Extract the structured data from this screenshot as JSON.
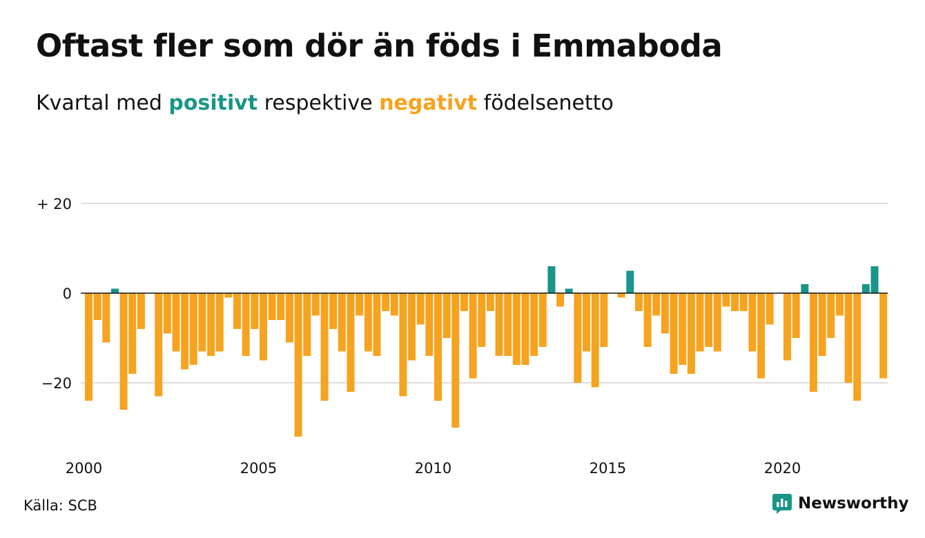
{
  "title": "Oftast fler som dör än föds i Emmaboda",
  "subtitle": {
    "before": "Kvartal med ",
    "positive_word": "positivt",
    "middle": " respektive ",
    "negative_word": "negativt",
    "after": " födelsenetto"
  },
  "colors": {
    "positive": "#1a9587",
    "negative": "#f6a31f",
    "grid": "#dddddd",
    "zero_line": "#111111"
  },
  "source": "Källa: SCB",
  "brand": {
    "name": "Newsworthy",
    "icon": "newsworthy-logo-icon"
  },
  "chart_data": {
    "type": "bar",
    "title": "Oftast fler som dör än föds i Emmaboda",
    "subtitle": "Kvartal med positivt respektive negativt födelsenetto",
    "xlabel": "",
    "ylabel": "",
    "x_tick_labels": [
      "2000",
      "2005",
      "2010",
      "2015",
      "2020"
    ],
    "y_ticks": [
      {
        "value": 20,
        "label": "+ 20"
      },
      {
        "value": 0,
        "label": "0"
      },
      {
        "value": -20,
        "label": "−20"
      }
    ],
    "ylim": [
      -34,
      22
    ],
    "grid": true,
    "start_year": 2000,
    "periods_per_year": 4,
    "values": [
      -24,
      -6,
      -11,
      1,
      -26,
      -18,
      -8,
      0,
      -23,
      -9,
      -13,
      -17,
      -16,
      -13,
      -14,
      -13,
      -1,
      -8,
      -14,
      -8,
      -15,
      -6,
      -6,
      -11,
      -32,
      -14,
      -5,
      -24,
      -8,
      -13,
      -22,
      -5,
      -13,
      -14,
      -4,
      -5,
      -23,
      -15,
      -7,
      -14,
      -24,
      -10,
      -30,
      -4,
      -19,
      -12,
      -4,
      -14,
      -14,
      -16,
      -16,
      -14,
      -12,
      6,
      -3,
      1,
      -20,
      -13,
      -21,
      -12,
      0,
      -1,
      5,
      -4,
      -12,
      -5,
      -9,
      -18,
      -16,
      -18,
      -13,
      -12,
      -13,
      -3,
      -4,
      -4,
      -13,
      -19,
      -7,
      0,
      -15,
      -10,
      2,
      -22,
      -14,
      -10,
      -5,
      -20,
      -24,
      2,
      6,
      -19
    ]
  }
}
